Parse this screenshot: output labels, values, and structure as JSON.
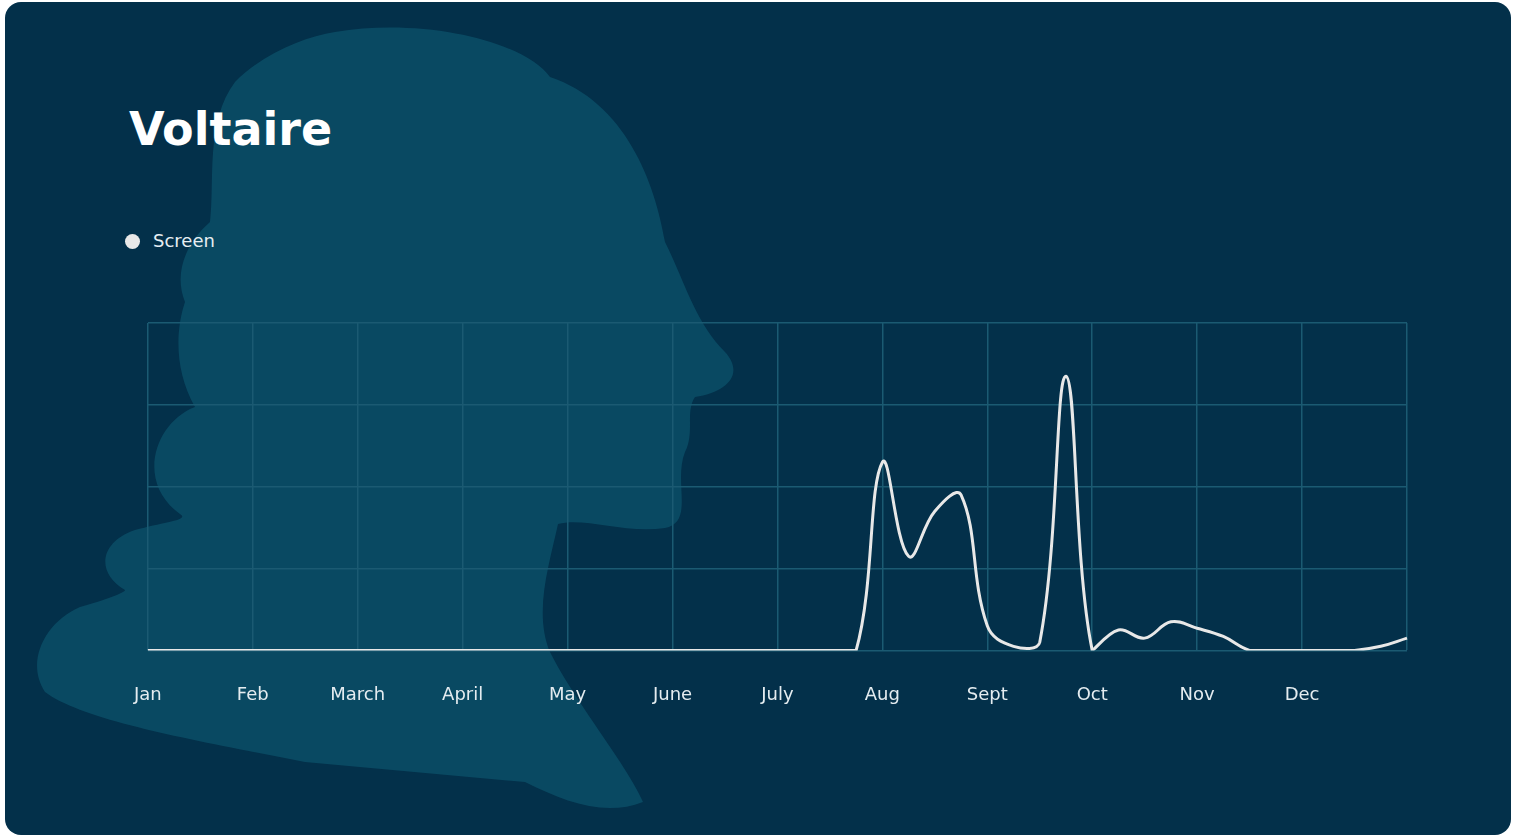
{
  "chart_data": {
    "type": "line",
    "title": "Voltaire",
    "categories": [
      "Jan",
      null,
      null,
      null,
      "Feb",
      null,
      null,
      null,
      "March",
      null,
      null,
      null,
      "April",
      null,
      null,
      null,
      "May",
      null,
      null,
      null,
      "June",
      null,
      null,
      null,
      "July",
      null,
      null,
      null,
      "Aug",
      null,
      null,
      null,
      "Sept",
      null,
      null,
      null,
      "Oct",
      null,
      null,
      null,
      "Nov",
      null,
      null,
      null,
      "Dec",
      null,
      null,
      null,
      null
    ],
    "series": [
      {
        "name": "Screen",
        "color": "#e8e8e8",
        "values": [
          0,
          0,
          0,
          0,
          0,
          0,
          0,
          0,
          0,
          0,
          0,
          0,
          0,
          0,
          0,
          0,
          0,
          0,
          0,
          0,
          0,
          0,
          0,
          0,
          0,
          0,
          0,
          0,
          2.3,
          1.15,
          1.7,
          1.9,
          0.3,
          0.05,
          0.1,
          3.35,
          0,
          0.25,
          0.15,
          0.35,
          0.27,
          0.17,
          0,
          0,
          0,
          0,
          0,
          0.05,
          0.15
        ]
      }
    ],
    "ylim": [
      0,
      4
    ],
    "yticks": [
      0,
      1,
      2,
      3,
      4
    ],
    "grid": true,
    "legend": "top-left",
    "tick_labels": "x"
  }
}
